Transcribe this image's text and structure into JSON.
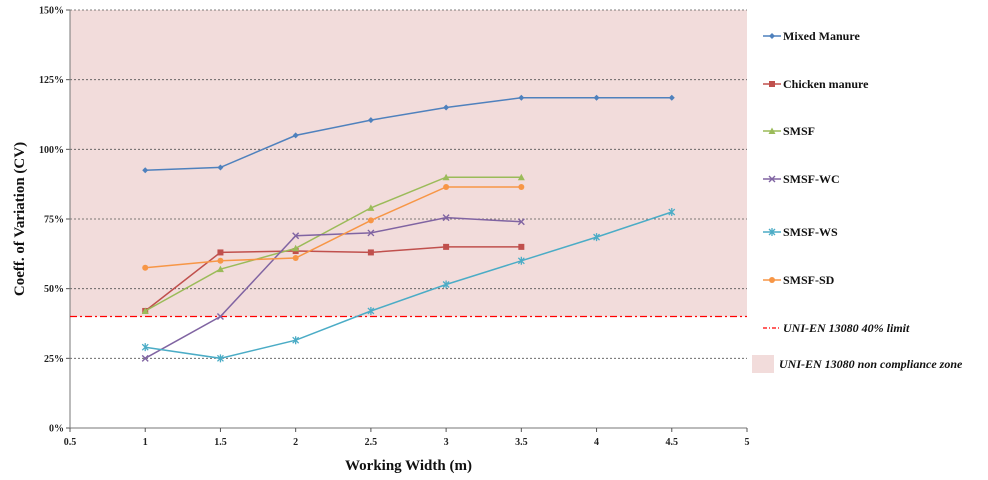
{
  "chart_data": {
    "type": "line",
    "xlabel": "Working Width (m)",
    "ylabel": "Coeff. of Variation (CV)",
    "xlim": [
      0.5,
      5
    ],
    "ylim": [
      0,
      150
    ],
    "x_ticks": [
      "0.5",
      "1",
      "1.5",
      "2",
      "2.5",
      "3",
      "3.5",
      "4",
      "4.5",
      "5"
    ],
    "y_ticks": [
      "0%",
      "25%",
      "50%",
      "75%",
      "100%",
      "125%",
      "150%"
    ],
    "grid": "horizontal-dashed",
    "legend_position": "right",
    "series": [
      {
        "name": "Mixed Manure",
        "color": "#4f81bd",
        "marker": "diamond",
        "points": [
          [
            1,
            92.5
          ],
          [
            1.5,
            93.5
          ],
          [
            2,
            105
          ],
          [
            2.5,
            110.5
          ],
          [
            3,
            115
          ],
          [
            3.5,
            118.5
          ],
          [
            4,
            118.5
          ],
          [
            4.5,
            118.5
          ]
        ]
      },
      {
        "name": "Chicken manure",
        "color": "#c0504d",
        "marker": "square",
        "points": [
          [
            1,
            42
          ],
          [
            1.5,
            63
          ],
          [
            2,
            63.5
          ],
          [
            2.5,
            63
          ],
          [
            3,
            65
          ],
          [
            3.5,
            65
          ]
        ]
      },
      {
        "name": "SMSF",
        "color": "#9bbb59",
        "marker": "triangle",
        "points": [
          [
            1,
            42
          ],
          [
            1.5,
            57
          ],
          [
            2,
            64.5
          ],
          [
            2.5,
            79
          ],
          [
            3,
            90
          ],
          [
            3.5,
            90
          ]
        ]
      },
      {
        "name": "SMSF-WC",
        "color": "#8064a2",
        "marker": "x",
        "points": [
          [
            1,
            25
          ],
          [
            1.5,
            40
          ],
          [
            2,
            69
          ],
          [
            2.5,
            70
          ],
          [
            3,
            75.5
          ],
          [
            3.5,
            74
          ]
        ]
      },
      {
        "name": "SMSF-WS",
        "color": "#4bacc6",
        "marker": "star",
        "points": [
          [
            1,
            29
          ],
          [
            1.5,
            25
          ],
          [
            2,
            31.5
          ],
          [
            2.5,
            42
          ],
          [
            3,
            51.5
          ],
          [
            3.5,
            60
          ],
          [
            4,
            68.5
          ],
          [
            4.5,
            77.5
          ]
        ]
      },
      {
        "name": "SMSF-SD",
        "color": "#f79646",
        "marker": "circle",
        "points": [
          [
            1,
            57.5
          ],
          [
            1.5,
            60
          ],
          [
            2,
            61
          ],
          [
            2.5,
            74.5
          ],
          [
            3,
            86.5
          ],
          [
            3.5,
            86.5
          ]
        ]
      }
    ],
    "limit_line": {
      "name": "UNI-EN 13080 40% limit",
      "value": 40,
      "color": "#ff0000"
    },
    "zone": {
      "name": "UNI-EN 13080 non compliance zone",
      "from": 40,
      "to": 150,
      "color": "#f2dcdb"
    }
  }
}
